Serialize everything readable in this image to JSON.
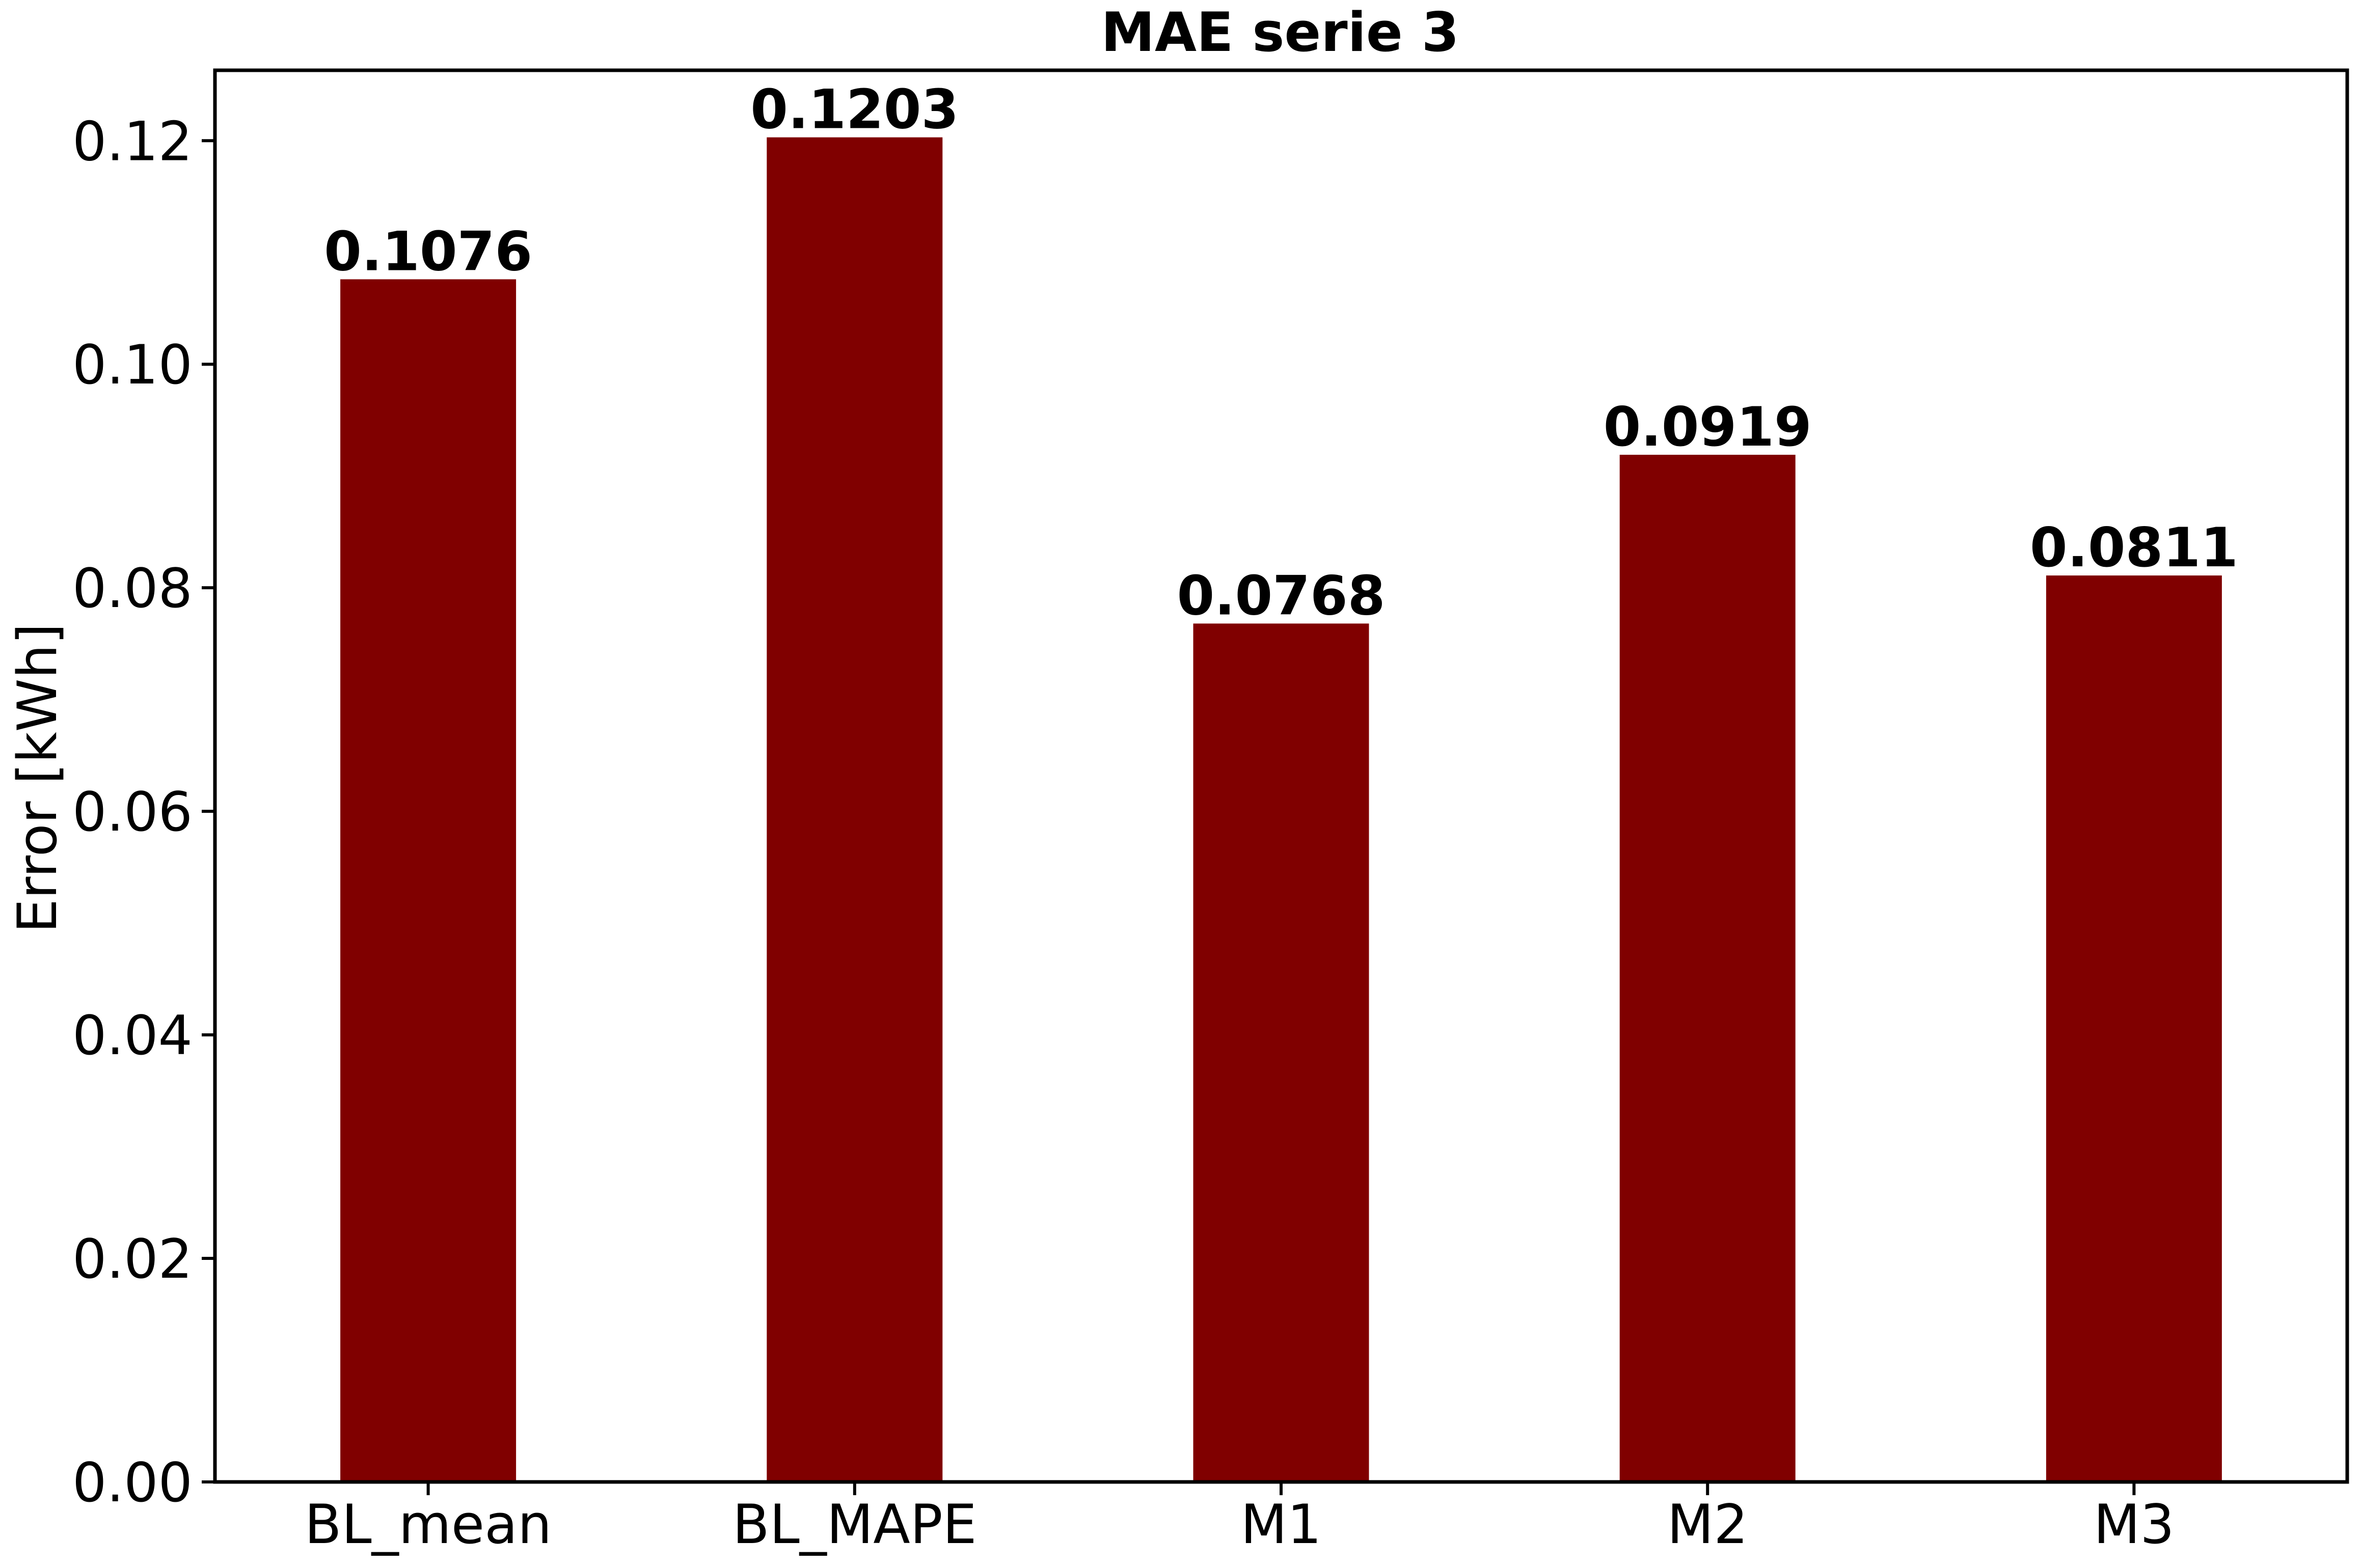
{
  "chart_data": {
    "type": "bar",
    "title": "MAE serie 3",
    "xlabel": "",
    "ylabel": "Error [kWh]",
    "categories": [
      "BL_mean",
      "BL_MAPE",
      "M1",
      "M2",
      "M3"
    ],
    "values": [
      0.1076,
      0.1203,
      0.0768,
      0.0919,
      0.0811
    ],
    "data_labels": [
      "0.1076",
      "0.1203",
      "0.0768",
      "0.0919",
      "0.0811"
    ],
    "ylim": [
      0,
      0.1263
    ],
    "yticks": [
      0.0,
      0.02,
      0.04,
      0.06,
      0.08,
      0.1,
      0.12
    ],
    "ytick_labels": [
      "0.00",
      "0.02",
      "0.04",
      "0.06",
      "0.08",
      "0.10",
      "0.12"
    ],
    "bar_color": "#800000",
    "grid": false,
    "legend": "none"
  }
}
